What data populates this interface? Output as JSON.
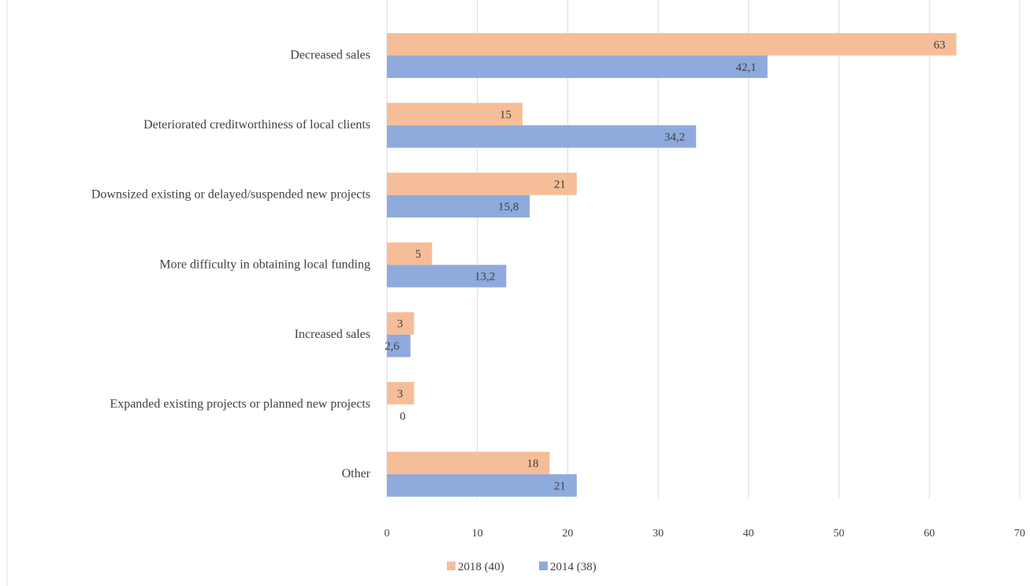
{
  "chart_data": {
    "type": "bar",
    "orientation": "horizontal",
    "categories": [
      "Decreased sales",
      "Deteriorated creditworthiness of local clients",
      "Downsized existing or delayed/suspended new projects",
      "More difficulty in obtaining local funding",
      "Increased sales",
      "Expanded existing projects or planned new projects",
      "Other"
    ],
    "series": [
      {
        "name": "2018 (40)",
        "color": "#F6BE98",
        "values": [
          63,
          15,
          21,
          5,
          3,
          3,
          18
        ],
        "labels": [
          "63",
          "15",
          "21",
          "5",
          "3",
          "3",
          "18"
        ]
      },
      {
        "name": "2014 (38)",
        "color": "#8FAADC",
        "values": [
          42.1,
          34.2,
          15.8,
          13.2,
          2.6,
          0,
          21
        ],
        "labels": [
          "42,1",
          "34,2",
          "15,8",
          "13,2",
          "2,6",
          "0",
          "21"
        ]
      }
    ],
    "xlim": [
      0,
      70
    ],
    "xticks": [
      "0",
      "10",
      "20",
      "30",
      "40",
      "50",
      "60",
      "70"
    ],
    "grid": true,
    "legend_position": "bottom"
  }
}
